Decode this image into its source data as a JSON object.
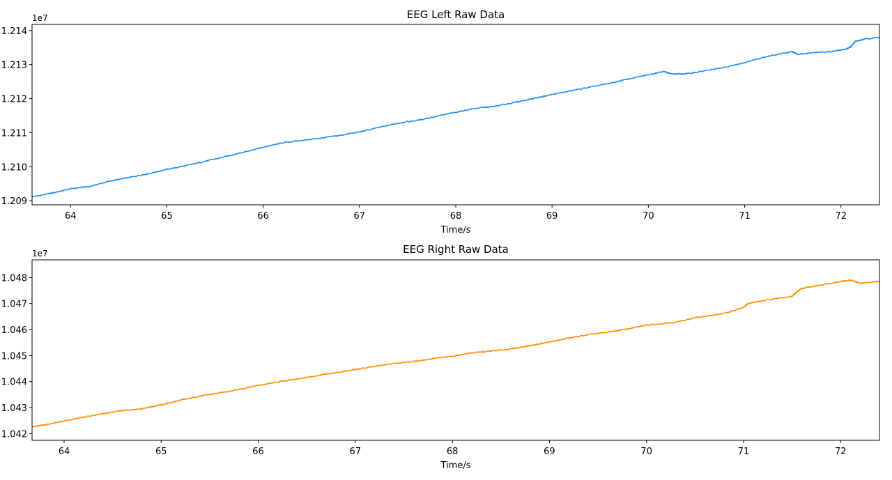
{
  "chart_data": [
    {
      "type": "line",
      "title": "EEG Left Raw Data",
      "xlabel": "Time/s",
      "ylabel": "",
      "offset_label": "1e7",
      "color": "#1f8ff0",
      "xlim": [
        63.6,
        72.4
      ],
      "ylim": [
        1.20888,
        1.21418
      ],
      "x_ticks": [
        64,
        65,
        66,
        67,
        68,
        69,
        70,
        71,
        72
      ],
      "y_ticks": [
        1.209,
        1.21,
        1.211,
        1.212,
        1.213,
        1.214
      ],
      "y_tick_labels": [
        "1.209",
        "1.210",
        "1.211",
        "1.212",
        "1.213",
        "1.214"
      ],
      "series": [
        {
          "name": "EEG Left",
          "x": [
            63.6,
            63.8,
            64.0,
            64.2,
            64.4,
            64.6,
            64.8,
            65.0,
            65.2,
            65.4,
            65.6,
            65.8,
            66.0,
            66.2,
            66.4,
            66.6,
            66.8,
            67.0,
            67.2,
            67.4,
            67.6,
            67.8,
            68.0,
            68.2,
            68.4,
            68.6,
            68.8,
            69.0,
            69.2,
            69.4,
            69.6,
            69.8,
            70.0,
            70.15,
            70.25,
            70.4,
            70.6,
            70.8,
            71.0,
            71.2,
            71.4,
            71.5,
            71.55,
            71.7,
            71.9,
            72.05,
            72.1,
            72.15,
            72.25,
            72.4
          ],
          "y": [
            1.20911,
            1.20922,
            1.20935,
            1.20942,
            1.20957,
            1.20968,
            1.20979,
            1.20992,
            1.21003,
            1.21016,
            1.21029,
            1.21043,
            1.21057,
            1.2107,
            1.21077,
            1.21084,
            1.21092,
            1.21102,
            1.21115,
            1.21128,
            1.21136,
            1.21148,
            1.2116,
            1.21171,
            1.21177,
            1.21188,
            1.212,
            1.21212,
            1.21223,
            1.21234,
            1.21245,
            1.21258,
            1.2127,
            1.2128,
            1.21272,
            1.21273,
            1.21282,
            1.21292,
            1.21306,
            1.21322,
            1.21333,
            1.21338,
            1.2133,
            1.21335,
            1.21338,
            1.21345,
            1.21352,
            1.21368,
            1.21375,
            1.2138
          ]
        }
      ]
    },
    {
      "type": "line",
      "title": "EEG Right Raw Data",
      "xlabel": "Time/s",
      "ylabel": "",
      "offset_label": "1e7",
      "color": "#ff8c00",
      "xlim": [
        63.67,
        72.4
      ],
      "ylim": [
        1.04174,
        1.04868
      ],
      "x_ticks": [
        64,
        65,
        66,
        67,
        68,
        69,
        70,
        71,
        72
      ],
      "y_ticks": [
        1.042,
        1.043,
        1.044,
        1.045,
        1.046,
        1.047,
        1.048
      ],
      "y_tick_labels": [
        "1.042",
        "1.043",
        "1.044",
        "1.045",
        "1.046",
        "1.047",
        "1.048"
      ],
      "series": [
        {
          "name": "EEG Right",
          "x": [
            63.67,
            63.8,
            64.0,
            64.2,
            64.4,
            64.6,
            64.8,
            65.0,
            65.2,
            65.4,
            65.6,
            65.8,
            66.0,
            66.2,
            66.4,
            66.6,
            66.8,
            67.0,
            67.2,
            67.4,
            67.6,
            67.8,
            68.0,
            68.2,
            68.4,
            68.6,
            68.8,
            69.0,
            69.2,
            69.4,
            69.6,
            69.8,
            70.0,
            70.3,
            70.5,
            70.8,
            71.0,
            71.05,
            71.2,
            71.5,
            71.55,
            71.6,
            71.8,
            72.0,
            72.1,
            72.2,
            72.4
          ],
          "y": [
            1.04226,
            1.04233,
            1.04248,
            1.04263,
            1.04276,
            1.04288,
            1.04296,
            1.0431,
            1.04328,
            1.04344,
            1.04356,
            1.0437,
            1.04385,
            1.04398,
            1.0441,
            1.04422,
            1.04434,
            1.04446,
            1.04458,
            1.0447,
            1.04477,
            1.04488,
            1.04497,
            1.0451,
            1.04517,
            1.04525,
            1.04538,
            1.04552,
            1.04567,
            1.0458,
            1.0459,
            1.04602,
            1.04617,
            1.04628,
            1.04645,
            1.04662,
            1.04685,
            1.047,
            1.04712,
            1.04728,
            1.04745,
            1.04758,
            1.04772,
            1.04785,
            1.0479,
            1.04778,
            1.04785
          ]
        }
      ]
    }
  ]
}
